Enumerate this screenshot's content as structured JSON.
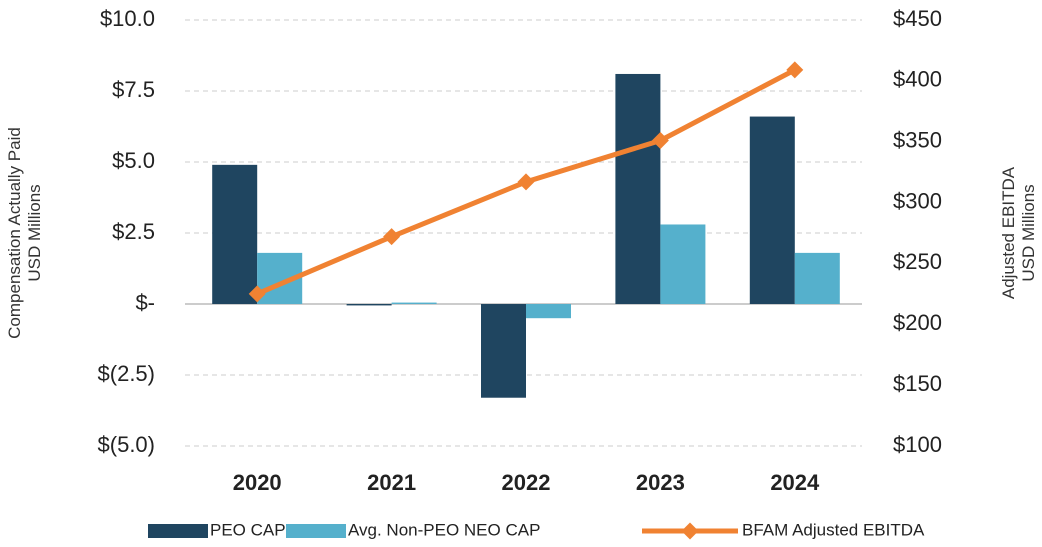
{
  "chart_data": {
    "type": "bar",
    "categories": [
      "2020",
      "2021",
      "2022",
      "2023",
      "2024"
    ],
    "series": [
      {
        "name": "PEO CAP",
        "color": "#1f4560",
        "values": [
          4.9,
          -0.05,
          -3.3,
          8.1,
          6.6
        ]
      },
      {
        "name": "Avg. Non-PEO NEO CAP",
        "color": "#55b0cc",
        "values": [
          1.8,
          0.05,
          -0.5,
          2.8,
          1.8
        ]
      },
      {
        "name": "BFAM Adjusted EBITDA",
        "color": "#f08232",
        "type": "line",
        "axis": "y2",
        "values": [
          225,
          272,
          317,
          351,
          409
        ]
      }
    ],
    "y_label": [
      "Compensation Actually Paid",
      "USD Millions"
    ],
    "y2_label": [
      "Adjusted EBITDA",
      "USD Millions"
    ],
    "ylim": [
      -5,
      10
    ],
    "yticks": [
      {
        "value": -5,
        "label": "$(5.0)"
      },
      {
        "value": -2.5,
        "label": "$(2.5)"
      },
      {
        "value": 0,
        "label": "$-"
      },
      {
        "value": 2.5,
        "label": "$2.5"
      },
      {
        "value": 5,
        "label": "$5.0"
      },
      {
        "value": 7.5,
        "label": "$7.5"
      },
      {
        "value": 10,
        "label": "$10.0"
      }
    ],
    "y2lim": [
      100,
      450
    ],
    "y2ticks": [
      {
        "value": 100,
        "label": "$100"
      },
      {
        "value": 150,
        "label": "$150"
      },
      {
        "value": 200,
        "label": "$200"
      },
      {
        "value": 250,
        "label": "$250"
      },
      {
        "value": 300,
        "label": "$300"
      },
      {
        "value": 350,
        "label": "$350"
      },
      {
        "value": 400,
        "label": "$400"
      },
      {
        "value": 450,
        "label": "$450"
      }
    ],
    "grid": true
  }
}
